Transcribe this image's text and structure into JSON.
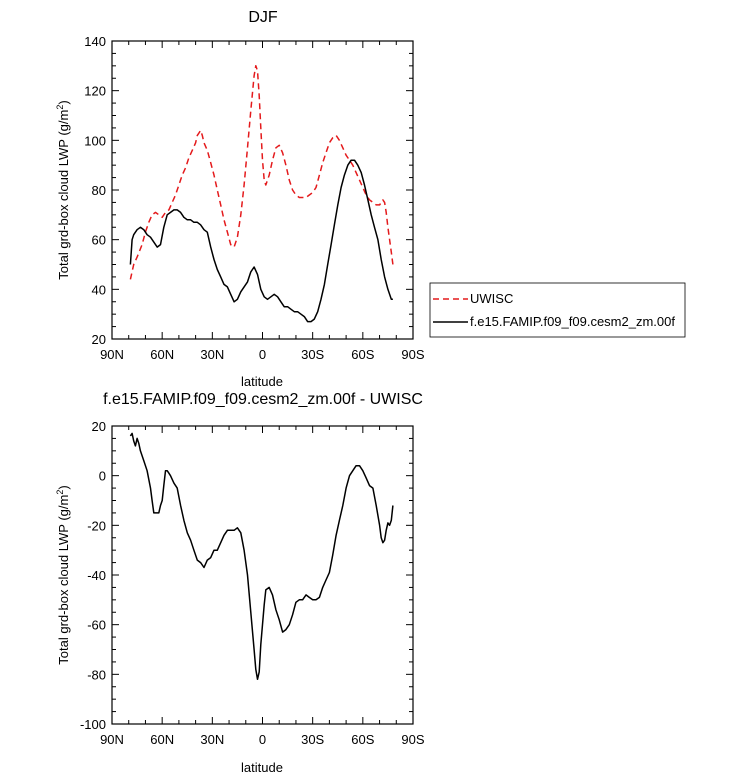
{
  "chart_data": [
    {
      "type": "line",
      "title": "DJF",
      "xlabel": "latitude",
      "ylabel": "Total grd-box cloud LWP (g/m",
      "ylabel_sup": "2",
      "ylabel_end": ")",
      "xlim": [
        90,
        -90
      ],
      "ylim": [
        20,
        140
      ],
      "x_ticks": [
        90,
        60,
        30,
        0,
        -30,
        -60,
        -90
      ],
      "x_tick_labels": [
        "90N",
        "60N",
        "30N",
        "0",
        "30S",
        "60S",
        "90S"
      ],
      "y_ticks": [
        20,
        40,
        60,
        80,
        100,
        120,
        140
      ],
      "y_tick_labels": [
        "20",
        "40",
        "60",
        "80",
        "100",
        "120",
        "140"
      ],
      "legend": {
        "position": "right"
      },
      "series": [
        {
          "name": "UWISC",
          "color": "#e41a1c",
          "dash": "dashed",
          "x": [
            79,
            77,
            75,
            72,
            70,
            68,
            66,
            64,
            62,
            60,
            58,
            56,
            54,
            52,
            50,
            48,
            46,
            44,
            42,
            40,
            39,
            38,
            37,
            36,
            35,
            33,
            31,
            29,
            27,
            25,
            23,
            21,
            19,
            17,
            15,
            13,
            11,
            9,
            7,
            5,
            4,
            3,
            2,
            1,
            0,
            -1,
            -2,
            -4,
            -6,
            -8,
            -10,
            -12,
            -14,
            -16,
            -18,
            -20,
            -22,
            -24,
            -26,
            -28,
            -30,
            -32,
            -34,
            -36,
            -38,
            -40,
            -42,
            -44,
            -46,
            -48,
            -50,
            -52,
            -54,
            -56,
            -58,
            -60,
            -62,
            -64,
            -66,
            -68,
            -70,
            -72,
            -73,
            -74,
            -75,
            -76,
            -77,
            -78
          ],
          "values": [
            44,
            50,
            53,
            58,
            63,
            67,
            70,
            71,
            70,
            69,
            71,
            72,
            75,
            78,
            82,
            86,
            89,
            93,
            96,
            99,
            102,
            103,
            104,
            102,
            99,
            96,
            91,
            86,
            80,
            74,
            68,
            63,
            58,
            57,
            61,
            70,
            82,
            97,
            112,
            126,
            130,
            128,
            118,
            105,
            92,
            84,
            82,
            86,
            92,
            97,
            98,
            95,
            90,
            84,
            80,
            78,
            77,
            77,
            77,
            78,
            79,
            81,
            86,
            91,
            95,
            99,
            101,
            102,
            100,
            97,
            94,
            92,
            90,
            87,
            84,
            81,
            78,
            76,
            75,
            74,
            74,
            76,
            75,
            71,
            65,
            60,
            55,
            50
          ]
        },
        {
          "name": "f.e15.FAMIP.f09_f09.cesm2_zm.00f",
          "color": "#000000",
          "dash": "solid",
          "x": [
            79,
            78,
            77,
            75,
            73,
            71,
            69,
            67,
            65,
            63,
            61,
            59,
            57,
            55,
            53,
            51,
            49,
            47,
            45,
            43,
            41,
            39,
            37,
            35,
            33,
            31,
            29,
            27,
            25,
            23,
            21,
            19,
            17,
            15,
            13,
            11,
            9,
            7,
            5,
            3,
            1,
            -1,
            -3,
            -5,
            -7,
            -9,
            -11,
            -13,
            -15,
            -17,
            -19,
            -21,
            -23,
            -25,
            -27,
            -29,
            -31,
            -33,
            -35,
            -37,
            -39,
            -41,
            -43,
            -45,
            -47,
            -49,
            -51,
            -53,
            -55,
            -57,
            -59,
            -61,
            -63,
            -65,
            -67,
            -69,
            -71,
            -73,
            -75,
            -77,
            -78
          ],
          "values": [
            50,
            60,
            62,
            64,
            65,
            64,
            62,
            61,
            59,
            57,
            58,
            65,
            70,
            71,
            72,
            72,
            71,
            69,
            68,
            68,
            67,
            67,
            66,
            64,
            63,
            57,
            52,
            48,
            45,
            42,
            41,
            38,
            35,
            36,
            39,
            41,
            43,
            47,
            49,
            46,
            40,
            37,
            36,
            37,
            38,
            37,
            35,
            33,
            33,
            32,
            31,
            31,
            30,
            29,
            27,
            27,
            28,
            31,
            36,
            42,
            50,
            58,
            66,
            74,
            81,
            86,
            90,
            92,
            92,
            90,
            87,
            82,
            76,
            70,
            65,
            60,
            52,
            45,
            40,
            36,
            36
          ]
        }
      ]
    },
    {
      "type": "line",
      "title": "f.e15.FAMIP.f09_f09.cesm2_zm.00f - UWISC",
      "xlabel": "latitude",
      "ylabel": "Total grd-box cloud LWP (g/m",
      "ylabel_sup": "2",
      "ylabel_end": ")",
      "xlim": [
        90,
        -90
      ],
      "ylim": [
        -100,
        20
      ],
      "x_ticks": [
        90,
        60,
        30,
        0,
        -30,
        -60,
        -90
      ],
      "x_tick_labels": [
        "90N",
        "60N",
        "30N",
        "0",
        "30S",
        "60S",
        "90S"
      ],
      "y_ticks": [
        -100,
        -80,
        -60,
        -40,
        -20,
        0,
        20
      ],
      "y_tick_labels": [
        "-100",
        "-80",
        "-60",
        "-40",
        "-20",
        "0",
        "20"
      ],
      "series": [
        {
          "name": "f.e15.FAMIP.f09_f09.cesm2_zm.00f - UWISC",
          "color": "#000000",
          "dash": "solid",
          "x": [
            79,
            78,
            77,
            76,
            75,
            74,
            73,
            71,
            69,
            67,
            66,
            65,
            64,
            62,
            61,
            60,
            59,
            58,
            57,
            56,
            55,
            53,
            51,
            49,
            47,
            45,
            43,
            41,
            39,
            37,
            35,
            33,
            31,
            29,
            27,
            25,
            23,
            21,
            19,
            17,
            15,
            13,
            11,
            9,
            7,
            5,
            4,
            3,
            2,
            1,
            -1,
            -2,
            -4,
            -6,
            -8,
            -10,
            -12,
            -14,
            -16,
            -18,
            -20,
            -22,
            -24,
            -26,
            -28,
            -30,
            -32,
            -34,
            -36,
            -38,
            -40,
            -42,
            -44,
            -46,
            -48,
            -50,
            -52,
            -54,
            -56,
            -58,
            -60,
            -62,
            -64,
            -66,
            -68,
            -70,
            -71,
            -72,
            -73,
            -74,
            -75,
            -76,
            -77,
            -78
          ],
          "values": [
            16,
            17,
            14,
            12,
            15,
            13,
            10,
            6,
            2,
            -5,
            -10,
            -15,
            -15,
            -15,
            -12,
            -10,
            -4,
            2,
            2,
            1,
            0,
            -3,
            -5,
            -12,
            -18,
            -23,
            -26,
            -30,
            -34,
            -35,
            -37,
            -34,
            -33,
            -30,
            -30,
            -27,
            -24,
            -22,
            -22,
            -22,
            -21,
            -23,
            -30,
            -40,
            -55,
            -70,
            -78,
            -82,
            -79,
            -68,
            -52,
            -46,
            -45,
            -48,
            -54,
            -58,
            -63,
            -62,
            -60,
            -56,
            -51,
            -50,
            -50,
            -48,
            -49,
            -50,
            -50,
            -49,
            -45,
            -42,
            -39,
            -32,
            -24,
            -18,
            -12,
            -5,
            0,
            2,
            4,
            4,
            2,
            -1,
            -4,
            -5,
            -12,
            -20,
            -25,
            -27,
            -26,
            -22,
            -19,
            -20,
            -18,
            -12
          ]
        }
      ]
    }
  ]
}
